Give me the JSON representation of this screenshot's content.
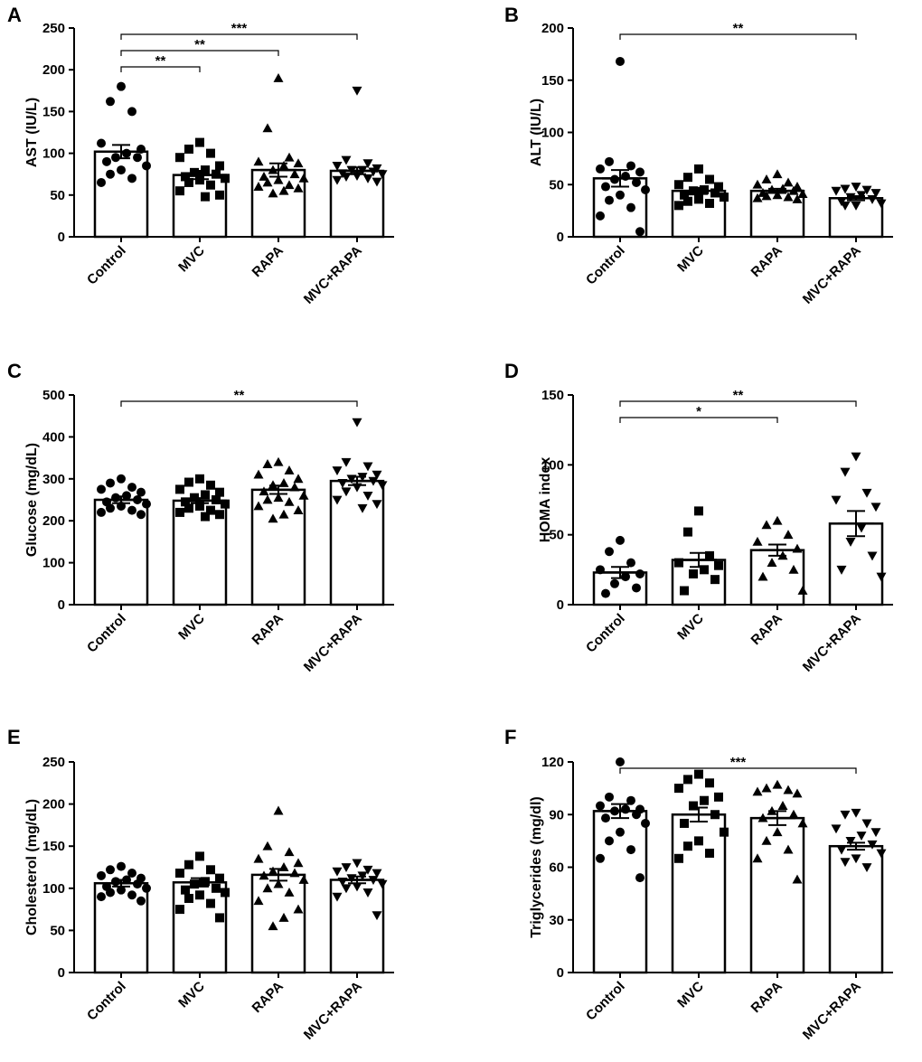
{
  "figure": {
    "panels": [
      "A",
      "B",
      "C",
      "D",
      "E",
      "F"
    ]
  },
  "chart_data": [
    {
      "panel": "A",
      "type": "bar",
      "ylabel": "AST (IU/L)",
      "categories": [
        "Control",
        "MVC",
        "RAPA",
        "MVC+RAPA"
      ],
      "markers": [
        "circle",
        "square",
        "triangle-up",
        "triangle-down"
      ],
      "ylim": [
        0,
        250
      ],
      "yticks": [
        0,
        50,
        100,
        150,
        200,
        250
      ],
      "means": [
        102,
        74,
        80,
        79
      ],
      "sems": [
        8,
        5,
        8,
        4
      ],
      "points": [
        [
          180,
          162,
          150,
          112,
          105,
          100,
          95,
          95,
          90,
          85,
          80,
          75,
          70,
          65
        ],
        [
          113,
          105,
          100,
          95,
          85,
          80,
          77,
          75,
          72,
          70,
          68,
          65,
          62,
          55,
          50,
          48
        ],
        [
          190,
          130,
          95,
          90,
          88,
          85,
          80,
          75,
          72,
          70,
          68,
          65,
          62,
          60,
          58,
          55,
          52
        ],
        [
          175,
          92,
          88,
          85,
          82,
          80,
          80,
          78,
          76,
          75,
          73,
          72,
          70,
          68,
          66
        ]
      ],
      "significance": [
        {
          "from": 0,
          "to": 1,
          "label": "**"
        },
        {
          "from": 0,
          "to": 2,
          "label": "**"
        },
        {
          "from": 0,
          "to": 3,
          "label": "***"
        }
      ]
    },
    {
      "panel": "B",
      "type": "bar",
      "ylabel": "ALT (IU/L)",
      "categories": [
        "Control",
        "MVC",
        "RAPA",
        "MVC+RAPA"
      ],
      "markers": [
        "circle",
        "square",
        "triangle-up",
        "triangle-down"
      ],
      "ylim": [
        0,
        200
      ],
      "yticks": [
        0,
        50,
        100,
        150,
        200
      ],
      "means": [
        56,
        44,
        44,
        37
      ],
      "sems": [
        8,
        3,
        2,
        2
      ],
      "points": [
        [
          168,
          72,
          68,
          65,
          62,
          58,
          55,
          52,
          48,
          45,
          40,
          35,
          28,
          20,
          5
        ],
        [
          65,
          57,
          55,
          50,
          48,
          45,
          44,
          42,
          40,
          38,
          36,
          34,
          32,
          30
        ],
        [
          60,
          55,
          52,
          50,
          48,
          46,
          45,
          44,
          42,
          41,
          40,
          39,
          38,
          37,
          36
        ],
        [
          48,
          46,
          45,
          44,
          42,
          40,
          38,
          36,
          34,
          32,
          30,
          30
        ]
      ],
      "significance": [
        {
          "from": 0,
          "to": 3,
          "label": "**"
        }
      ]
    },
    {
      "panel": "C",
      "type": "bar",
      "ylabel": "Glucose (mg/dL)",
      "categories": [
        "Control",
        "MVC",
        "RAPA",
        "MVC+RAPA"
      ],
      "markers": [
        "circle",
        "square",
        "triangle-up",
        "triangle-down"
      ],
      "ylim": [
        0,
        500
      ],
      "yticks": [
        0,
        100,
        200,
        300,
        400,
        500
      ],
      "means": [
        250,
        248,
        274,
        295
      ],
      "sems": [
        8,
        6,
        10,
        10
      ],
      "points": [
        [
          300,
          290,
          280,
          275,
          268,
          260,
          255,
          250,
          245,
          240,
          235,
          230,
          225,
          220,
          215
        ],
        [
          300,
          292,
          285,
          275,
          268,
          262,
          255,
          250,
          245,
          240,
          235,
          230,
          225,
          220,
          215,
          210
        ],
        [
          340,
          335,
          320,
          310,
          300,
          290,
          285,
          280,
          270,
          260,
          255,
          250,
          245,
          235,
          225,
          215,
          205
        ],
        [
          435,
          340,
          330,
          320,
          310,
          305,
          300,
          295,
          290,
          285,
          280,
          270,
          260,
          250,
          240,
          230
        ]
      ],
      "significance": [
        {
          "from": 0,
          "to": 3,
          "label": "**"
        }
      ]
    },
    {
      "panel": "D",
      "type": "bar",
      "ylabel": "HOMA index",
      "categories": [
        "Control",
        "MVC",
        "RAPA",
        "MVC+RAPA"
      ],
      "markers": [
        "circle",
        "square",
        "triangle-up",
        "triangle-down"
      ],
      "ylim": [
        0,
        150
      ],
      "yticks": [
        0,
        50,
        100,
        150
      ],
      "means": [
        23,
        32,
        39,
        58
      ],
      "sems": [
        4,
        5,
        4,
        9
      ],
      "points": [
        [
          46,
          38,
          30,
          25,
          22,
          20,
          15,
          12,
          8
        ],
        [
          67,
          52,
          35,
          30,
          28,
          25,
          22,
          18,
          10
        ],
        [
          60,
          57,
          50,
          45,
          40,
          35,
          30,
          25,
          20,
          10
        ],
        [
          106,
          95,
          80,
          75,
          70,
          55,
          45,
          35,
          25,
          20
        ]
      ],
      "significance": [
        {
          "from": 0,
          "to": 2,
          "label": "*"
        },
        {
          "from": 0,
          "to": 3,
          "label": "**"
        }
      ]
    },
    {
      "panel": "E",
      "type": "bar",
      "ylabel": "Cholesterol (mg/dL)",
      "categories": [
        "Control",
        "MVC",
        "RAPA",
        "MVC+RAPA"
      ],
      "markers": [
        "circle",
        "square",
        "triangle-up",
        "triangle-down"
      ],
      "ylim": [
        0,
        250
      ],
      "yticks": [
        0,
        50,
        100,
        150,
        200,
        250
      ],
      "means": [
        106,
        107,
        116,
        110
      ],
      "sems": [
        4,
        5,
        7,
        4
      ],
      "points": [
        [
          126,
          122,
          118,
          115,
          112,
          110,
          108,
          105,
          102,
          100,
          98,
          95,
          92,
          90,
          85
        ],
        [
          138,
          128,
          122,
          118,
          112,
          108,
          105,
          100,
          98,
          95,
          92,
          88,
          82,
          75,
          65
        ],
        [
          192,
          150,
          143,
          135,
          130,
          125,
          120,
          118,
          115,
          110,
          105,
          100,
          95,
          85,
          75,
          65,
          55
        ],
        [
          130,
          125,
          122,
          120,
          118,
          115,
          112,
          110,
          108,
          105,
          102,
          100,
          95,
          90,
          68
        ]
      ],
      "significance": []
    },
    {
      "panel": "F",
      "type": "bar",
      "ylabel": "Triglycerides (mg/dl)",
      "categories": [
        "Control",
        "MVC",
        "RAPA",
        "MVC+RAPA"
      ],
      "markers": [
        "circle",
        "square",
        "triangle-up",
        "triangle-down"
      ],
      "ylim": [
        0,
        120
      ],
      "yticks": [
        0,
        30,
        60,
        90,
        120
      ],
      "means": [
        92,
        90,
        88,
        72
      ],
      "sems": [
        4,
        4,
        4,
        2
      ],
      "points": [
        [
          120,
          100,
          98,
          95,
          93,
          93,
          92,
          90,
          88,
          85,
          80,
          75,
          70,
          65,
          54
        ],
        [
          113,
          110,
          108,
          105,
          100,
          98,
          95,
          90,
          85,
          80,
          75,
          72,
          68,
          65
        ],
        [
          107,
          105,
          104,
          103,
          102,
          95,
          92,
          90,
          88,
          85,
          80,
          75,
          70,
          65,
          53
        ],
        [
          91,
          90,
          85,
          82,
          80,
          78,
          75,
          73,
          70,
          68,
          65,
          63,
          60
        ]
      ],
      "significance": [
        {
          "from": 0,
          "to": 3,
          "label": "***"
        }
      ]
    }
  ]
}
